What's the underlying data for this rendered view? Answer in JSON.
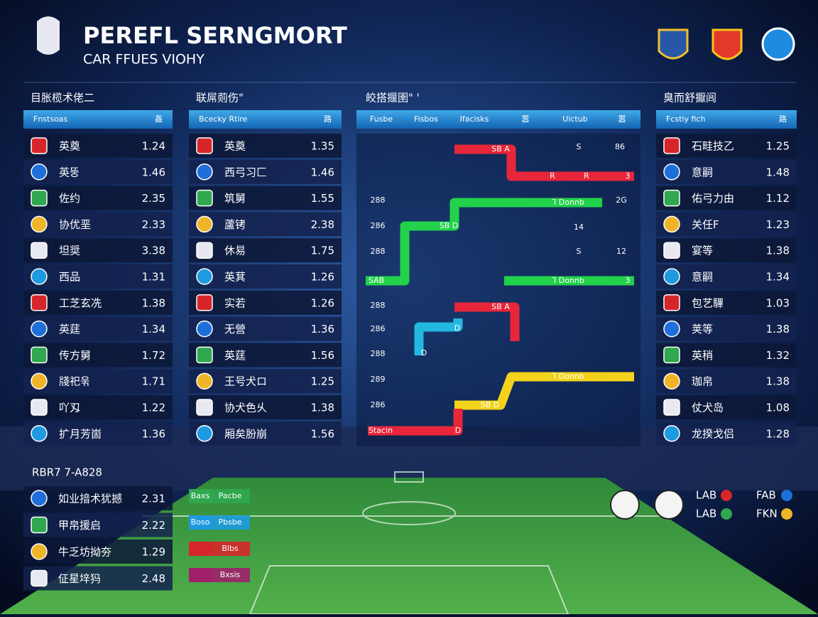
{
  "header": {
    "title": "PEREFL SERNGMORT",
    "subtitle": "CAR FFUES VIOHY"
  },
  "table_a": {
    "title": "目胀榄术佬二",
    "columns": [
      "Fnstsoas",
      "姦"
    ],
    "rows": [
      {
        "name": "英奠",
        "value": "1.24"
      },
      {
        "name": "英뚱",
        "value": "1.46"
      },
      {
        "name": "佐约",
        "value": "2.35"
      },
      {
        "name": "协优垩",
        "value": "2.33"
      },
      {
        "name": "坦奨",
        "value": "3.38"
      },
      {
        "name": "西品",
        "value": "1.31"
      },
      {
        "name": "工芝玄冼",
        "value": "1.38"
      },
      {
        "name": "英莛",
        "value": "1.34"
      },
      {
        "name": "传方舅",
        "value": "1.72"
      },
      {
        "name": "牋祀욲",
        "value": "1.71"
      },
      {
        "name": "吖刄",
        "value": "1.22"
      },
      {
        "name": "扩月芳崮",
        "value": "1.36"
      }
    ]
  },
  "table_b": {
    "title": "联屌荝伤\"",
    "columns": [
      "Bcecky Rtire",
      "路"
    ],
    "rows": [
      {
        "name": "英奠",
        "value": "1.35"
      },
      {
        "name": "西弓习匚",
        "value": "1.46"
      },
      {
        "name": "筑舅",
        "value": "1.55"
      },
      {
        "name": "蘆铐",
        "value": "2.38"
      },
      {
        "name": "休易",
        "value": "1.75"
      },
      {
        "name": "英萁",
        "value": "1.26"
      },
      {
        "name": "实若",
        "value": "1.26"
      },
      {
        "name": "无營",
        "value": "1.36"
      },
      {
        "name": "英莛",
        "value": "1.56"
      },
      {
        "name": "王号犬ロ",
        "value": "1.25"
      },
      {
        "name": "协犬色乆",
        "value": "1.38"
      },
      {
        "name": "厢矣朌崩",
        "value": "1.56"
      }
    ]
  },
  "bracket": {
    "title": "皎搭揠圉\" '",
    "columns": [
      "Fusbe",
      "Fisbos",
      "Ifacisks",
      "嚣",
      "Uictub",
      "嚣"
    ],
    "labels": [
      "SB A",
      "S",
      "86",
      "R",
      "R",
      "3",
      "Ꞁ Donnb",
      "2G",
      "SB D",
      "14",
      "S",
      "12",
      "SAB",
      "Ꞁ Donnb",
      "3",
      "SB A",
      "D",
      "D",
      "Ꞁ Donnb",
      "SB D",
      "Stacin",
      "D",
      "288",
      "286",
      "288",
      "288",
      "286",
      "288",
      "289",
      "286"
    ]
  },
  "table_c": {
    "title": "臭而舒擫闾",
    "columns": [
      "Fcstiy fich",
      "路"
    ],
    "rows": [
      {
        "name": "石畦技乙",
        "value": "1.25"
      },
      {
        "name": "意嗣",
        "value": "1.48"
      },
      {
        "name": "佑弓力由",
        "value": "1.12"
      },
      {
        "name": "关任F",
        "value": "1.23"
      },
      {
        "name": "宴等",
        "value": "1.38"
      },
      {
        "name": "意嗣",
        "value": "1.34"
      },
      {
        "name": "包艺驆",
        "value": "1.03"
      },
      {
        "name": "荚等",
        "value": "1.38"
      },
      {
        "name": "英稍",
        "value": "1.32"
      },
      {
        "name": "珈帛",
        "value": "1.38"
      },
      {
        "name": "仗犬岛",
        "value": "1.08"
      },
      {
        "name": "龙揆戈侣",
        "value": "1.28"
      }
    ]
  },
  "table_d": {
    "title": "RBR7 7-A828",
    "rows": [
      {
        "name": "如业揞术犹撼",
        "value": "2.31"
      },
      {
        "name": "甲帛援启",
        "value": "2.22"
      },
      {
        "name": "牛乏坊拗夯",
        "value": "1.29"
      },
      {
        "name": "佂星垶犸",
        "value": "2.48"
      }
    ]
  },
  "buttons": [
    "Baxs",
    "Pacbe",
    "Boso",
    "Pbsbe",
    "Blbs",
    "Bxsis"
  ],
  "scores": [
    "LAB",
    "FAB",
    "LAB",
    "FKN"
  ]
}
